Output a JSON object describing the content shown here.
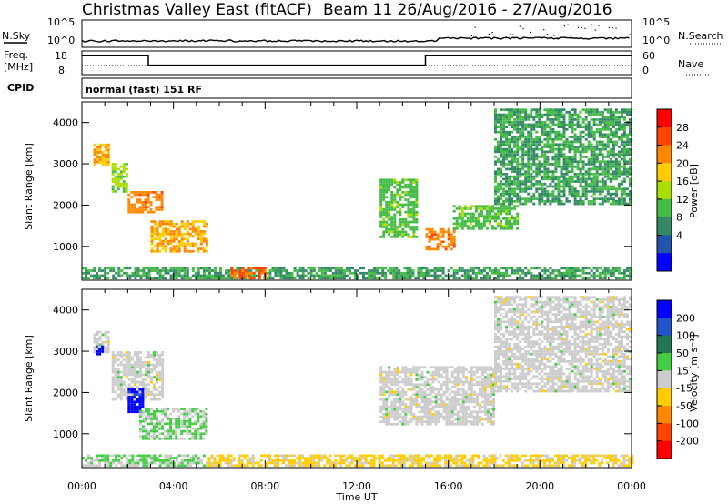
{
  "header": {
    "title": "Christmas Valley East (fitACF)",
    "beam_info": "Beam 11  26/Aug/2016 - 27/Aug/2016"
  },
  "noise_panel": {
    "left_label": "N.Sky",
    "right_label": "N.Search",
    "left_ticks": [
      "10^5",
      "10^0"
    ],
    "right_ticks": [
      "10^5",
      "10^0"
    ]
  },
  "freq_panel": {
    "left_label_line1": "Freq.",
    "left_label_line2": "[MHz]",
    "left_ticks": [
      "18",
      "8"
    ],
    "right_label": "Nave",
    "right_ticks": [
      "60",
      "0"
    ]
  },
  "cpid": {
    "label": "CPID",
    "value": "normal (fast) 151 RF"
  },
  "x_axis": {
    "label": "Time UT",
    "ticks": [
      "00:00",
      "04:00",
      "08:00",
      "12:00",
      "16:00",
      "20:00",
      "00:00"
    ]
  },
  "power_colorbar": {
    "label": "Power [dB]",
    "ticks": [
      "28",
      "24",
      "20",
      "16",
      "12",
      "8",
      "4"
    ],
    "colors": [
      "#ff0000",
      "#ff4400",
      "#ff8800",
      "#ffcc00",
      "#aadd00",
      "#44bb44",
      "#338866",
      "#2255aa",
      "#0000ff"
    ]
  },
  "velocity_colorbar": {
    "label": "Velocity [m s⁻¹]",
    "ticks": [
      "200",
      "100",
      "50",
      "15",
      "-15",
      "-50",
      "-100",
      "-200"
    ],
    "colors": [
      "#0000ff",
      "#2255cc",
      "#227755",
      "#44cc44",
      "#cccccc",
      "#ffcc00",
      "#ff8800",
      "#ff4400",
      "#ff0000"
    ]
  },
  "chart_data": [
    {
      "type": "heatmap",
      "title": "",
      "xlabel": "Time UT",
      "ylabel": "Slant Range [km]",
      "xlim": [
        0,
        24
      ],
      "ylim": [
        180,
        4500
      ],
      "y_ticks": [
        1000,
        2000,
        3000,
        4000
      ],
      "colorbar": "Power [dB]",
      "clim": [
        0,
        30
      ],
      "patches": [
        {
          "t0": 0.5,
          "t1": 1.2,
          "r0": 2950,
          "r1": 3450,
          "value": 20
        },
        {
          "t0": 1.3,
          "t1": 2.0,
          "r0": 2300,
          "r1": 3000,
          "value": 14
        },
        {
          "t0": 2.0,
          "t1": 3.5,
          "r0": 1800,
          "r1": 2300,
          "value": 22
        },
        {
          "t0": 3.0,
          "t1": 5.5,
          "r0": 850,
          "r1": 1600,
          "value": 20
        },
        {
          "t0": 13.0,
          "t1": 14.6,
          "r0": 1200,
          "r1": 2600,
          "value": 12
        },
        {
          "t0": 15.0,
          "t1": 16.3,
          "r0": 900,
          "r1": 1400,
          "value": 22
        },
        {
          "t0": 16.2,
          "t1": 19.0,
          "r0": 1400,
          "r1": 2000,
          "value": 12
        },
        {
          "t0": 18.0,
          "t1": 24.0,
          "r0": 2000,
          "r1": 4300,
          "value": 10
        },
        {
          "t0": 0.0,
          "t1": 24.0,
          "r0": 200,
          "r1": 450,
          "value": 10
        },
        {
          "t0": 6.5,
          "t1": 8.0,
          "r0": 200,
          "r1": 450,
          "value": 24
        }
      ]
    },
    {
      "type": "heatmap",
      "title": "",
      "xlabel": "Time UT",
      "ylabel": "Slant Range [km]",
      "xlim": [
        0,
        24
      ],
      "ylim": [
        180,
        4500
      ],
      "y_ticks": [
        1000,
        2000,
        3000,
        4000
      ],
      "colorbar": "Velocity [m s⁻¹]",
      "clim": [
        -250,
        250
      ],
      "patches": [
        {
          "t0": 0.5,
          "t1": 1.2,
          "r0": 2950,
          "r1": 3450,
          "value": 0
        },
        {
          "t0": 0.6,
          "t1": 0.9,
          "r0": 2900,
          "r1": 3100,
          "value": 220
        },
        {
          "t0": 1.3,
          "t1": 3.5,
          "r0": 1800,
          "r1": 3000,
          "value": 0
        },
        {
          "t0": 2.0,
          "t1": 2.7,
          "r0": 1500,
          "r1": 2100,
          "value": 220
        },
        {
          "t0": 2.5,
          "t1": 5.5,
          "r0": 850,
          "r1": 1600,
          "value": 30
        },
        {
          "t0": 13.0,
          "t1": 18.0,
          "r0": 1200,
          "r1": 2600,
          "value": 0
        },
        {
          "t0": 18.0,
          "t1": 24.0,
          "r0": 2000,
          "r1": 4300,
          "value": 0
        },
        {
          "t0": 0.0,
          "t1": 5.5,
          "r0": 200,
          "r1": 450,
          "value": 30
        },
        {
          "t0": 5.5,
          "t1": 24.0,
          "r0": 200,
          "r1": 450,
          "value": -40
        }
      ]
    },
    {
      "type": "line",
      "title": "",
      "ylabel": "Freq. [MHz]",
      "xlim": [
        0,
        24
      ],
      "ylim": [
        8,
        18
      ],
      "series": [
        {
          "x": [
            0,
            2.9,
            2.9,
            15.0,
            15.0,
            24
          ],
          "y": [
            16,
            16,
            12,
            12,
            16,
            16
          ]
        }
      ]
    }
  ]
}
